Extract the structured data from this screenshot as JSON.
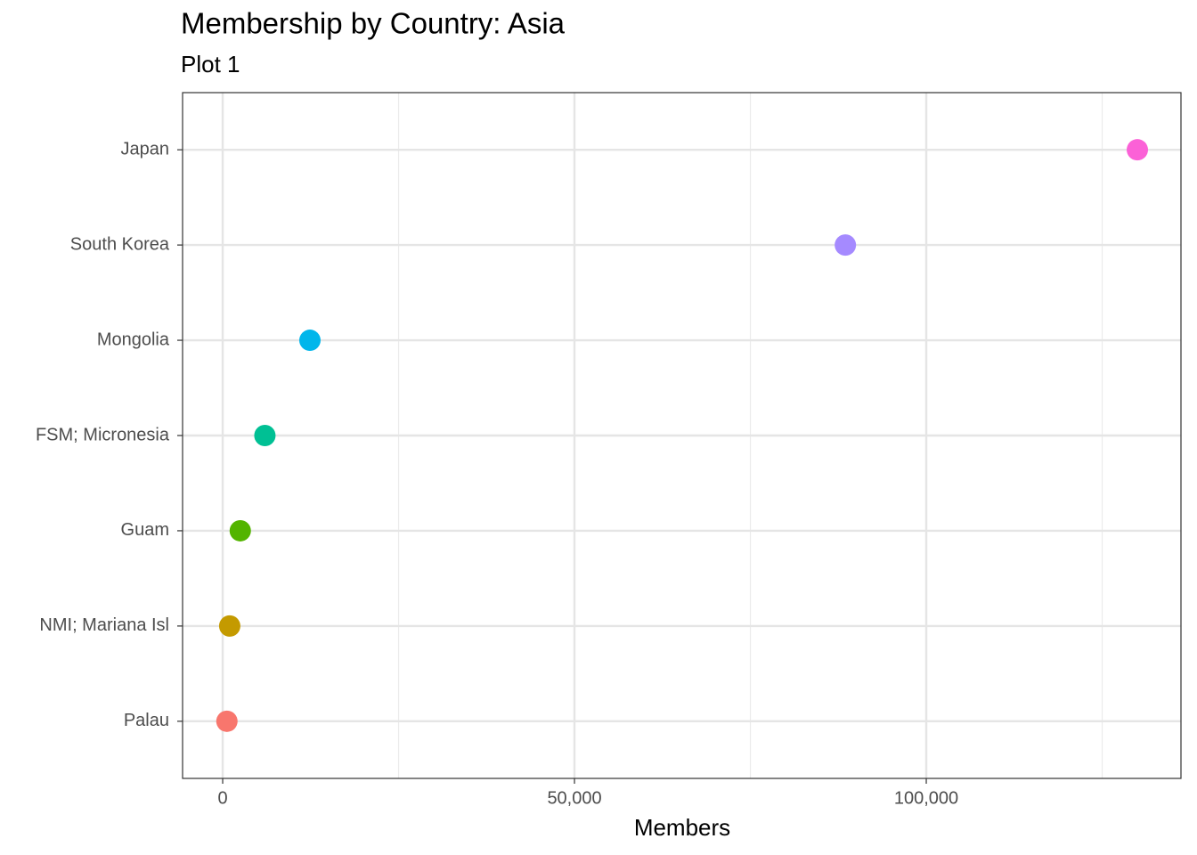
{
  "chart_data": {
    "type": "dot",
    "title": "Membership by Country: Asia",
    "subtitle": "Plot 1",
    "x_label": "Members",
    "categories": [
      "Palau",
      "NMI; Mariana Isl",
      "Guam",
      "FSM; Micronesia",
      "Mongolia",
      "South Korea",
      "Japan"
    ],
    "values": [
      600,
      1000,
      2500,
      6000,
      12400,
      88500,
      130000
    ],
    "colors": [
      "#F8766D",
      "#C49A00",
      "#53B400",
      "#00C094",
      "#00B6EB",
      "#A58AFF",
      "#FB61D7"
    ],
    "xlim": [
      -5700,
      136200
    ],
    "xticks": [
      0,
      {
        "value": 50000,
        "label": "50,000"
      },
      {
        "value": 100000,
        "label": "100,000"
      }
    ],
    "x_minor_grid": [
      25000,
      75000,
      125000
    ],
    "grid": true
  }
}
